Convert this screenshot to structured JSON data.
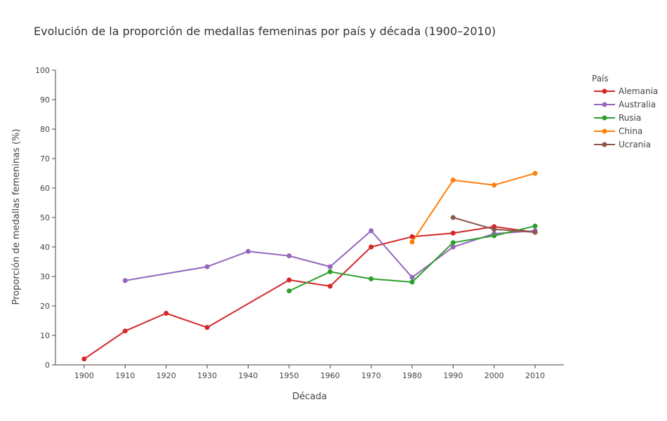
{
  "chart_data": {
    "type": "line",
    "title": "Evolución de la proporción de medallas femeninas por país y década (1900–2010)",
    "xlabel": "Década",
    "ylabel": "Proporción de medallas femeninas (%)",
    "x_ticks": [
      "1900",
      "1910",
      "1920",
      "1930",
      "1940",
      "1950",
      "1960",
      "1970",
      "1980",
      "1990",
      "2000",
      "2010"
    ],
    "y_ticks": [
      "0",
      "10",
      "20",
      "30",
      "40",
      "50",
      "60",
      "70",
      "80",
      "90",
      "100"
    ],
    "xlim": [
      1893,
      2017
    ],
    "ylim": [
      0,
      100
    ],
    "grid": false,
    "legend": {
      "title": "País",
      "position": "right"
    },
    "series": [
      {
        "name": "Alemania",
        "color": "#d62728",
        "x": [
          1900,
          1910,
          1920,
          1930,
          1950,
          1960,
          1970,
          1980,
          1990,
          2000,
          2010
        ],
        "values": [
          2.0,
          11.5,
          17.5,
          12.7,
          28.8,
          26.7,
          40.0,
          43.5,
          44.7,
          46.9,
          45.0
        ]
      },
      {
        "name": "Australia",
        "color": "#9467bd",
        "x": [
          1910,
          1930,
          1940,
          1950,
          1960,
          1970,
          1980,
          1990,
          2000,
          2010
        ],
        "values": [
          28.6,
          33.3,
          38.5,
          37.0,
          33.3,
          45.5,
          29.7,
          40.0,
          44.5,
          45.5
        ]
      },
      {
        "name": "Rusia",
        "color": "#2ca02c",
        "x": [
          1950,
          1960,
          1970,
          1980,
          1990,
          2000,
          2010
        ],
        "values": [
          25.1,
          31.6,
          29.2,
          28.1,
          41.5,
          43.8,
          47.1
        ]
      },
      {
        "name": "China",
        "color": "#ff7f0e",
        "x": [
          1980,
          1990,
          2000,
          2010
        ],
        "values": [
          41.7,
          62.7,
          61.0,
          65.0
        ]
      },
      {
        "name": "Ucrania",
        "color": "#8c564b",
        "x": [
          1990,
          2000,
          2010
        ],
        "values": [
          50.0,
          46.0,
          45.0
        ]
      }
    ]
  }
}
